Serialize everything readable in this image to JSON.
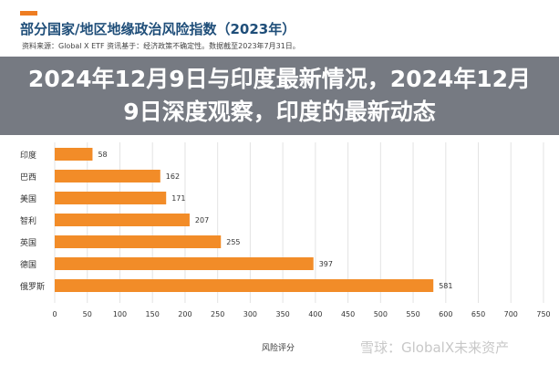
{
  "header": {
    "title": "部分国家/地区地缘政治风险指数（2023年）",
    "source": "资料来源：Global X ETF 资讯基于：经济政策不确定性。数据截至2023年7月31日。"
  },
  "overlay": {
    "headline": "2024年12月9日与印度最新情况，2024年12月9日深度观察，印度的最新动态"
  },
  "watermark": "雪球：GlobalX未来资产",
  "chart_data": {
    "type": "bar",
    "orientation": "horizontal",
    "categories": [
      "印度",
      "巴西",
      "美国",
      "智利",
      "英国",
      "德国",
      "俄罗斯"
    ],
    "values": [
      58,
      162,
      171,
      207,
      255,
      397,
      581
    ],
    "xlabel": "风险评分",
    "ylabel": "",
    "xlim": [
      0,
      750
    ],
    "xticks": [
      0,
      50,
      100,
      150,
      200,
      250,
      300,
      350,
      400,
      450,
      500,
      550,
      600,
      650,
      700,
      750
    ],
    "grid": "vertical",
    "bar_color": "#f28c28",
    "accent_color": "#ee7d22",
    "title_color": "#1f4e79"
  }
}
